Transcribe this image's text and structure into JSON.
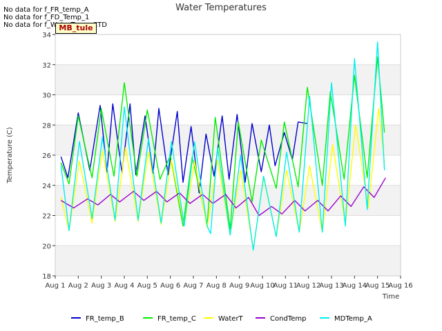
{
  "notices": [
    "No data for f_FR_temp_A",
    "No data for f_FD_Temp_1",
    "No data for f_WaterTemp_CTD"
  ],
  "site_tag": "MB_tule",
  "chart_data": {
    "type": "line",
    "title": "Water Temperatures",
    "xlabel": "Time",
    "ylabel": "Temperature (C)",
    "ylim": [
      18,
      34
    ],
    "xlim": [
      1,
      16
    ],
    "grid": true,
    "legend_position": "bottom",
    "x_ticks": [
      "Aug 1",
      "Aug 2",
      "Aug 3",
      "Aug 4",
      "Aug 5",
      "Aug 6",
      "Aug 7",
      "Aug 8",
      "Aug 9",
      "Aug 10",
      "Aug 11",
      "Aug 12",
      "Aug 13",
      "Aug 14",
      "Aug 15",
      "Aug 16"
    ],
    "y_ticks": [
      18,
      20,
      22,
      24,
      26,
      28,
      30,
      32,
      34
    ],
    "series": [
      {
        "name": "FR_temp_B",
        "color": "#0000cc",
        "x": [
          1.25,
          1.55,
          2.0,
          2.5,
          2.95,
          3.25,
          3.5,
          3.9,
          4.25,
          4.5,
          4.9,
          5.25,
          5.5,
          5.9,
          6.3,
          6.55,
          6.9,
          7.25,
          7.55,
          7.9,
          8.25,
          8.55,
          8.9,
          9.25,
          9.55,
          9.95,
          10.3,
          10.55,
          10.95,
          11.3,
          11.55,
          11.95,
          12.3,
          12.55,
          12.9,
          13.3,
          13.55,
          13.9,
          14.3,
          14.55,
          14.9,
          15.25
        ],
        "y": [
          25.9,
          24.5,
          28.8,
          25.0,
          29.3,
          24.9,
          29.4,
          24.8,
          29.4,
          24.7,
          28.6,
          24.8,
          29.1,
          24.7,
          28.9,
          24.2,
          27.9,
          23.5,
          27.4,
          24.6,
          28.6,
          24.4,
          28.7,
          24.2,
          28.1,
          24.9,
          28.0,
          25.3,
          27.5,
          25.7,
          28.2,
          28.1,
          null,
          null,
          null,
          null,
          null,
          null,
          null,
          null,
          null,
          null
        ]
      },
      {
        "name": "FR_temp_C",
        "color": "#00ee00",
        "x": [
          1.25,
          1.6,
          2.0,
          2.6,
          3.0,
          3.55,
          4.0,
          4.55,
          5.0,
          5.55,
          6.0,
          6.55,
          6.95,
          7.6,
          7.95,
          8.6,
          8.95,
          9.55,
          9.95,
          10.6,
          10.95,
          11.55,
          11.95,
          12.6,
          12.95,
          13.55,
          14.0,
          14.55,
          15.0,
          15.3
        ],
        "y": [
          25.5,
          24.1,
          28.6,
          24.5,
          29.1,
          24.6,
          30.8,
          24.6,
          29.0,
          24.4,
          26.0,
          21.3,
          25.9,
          21.4,
          28.5,
          21.1,
          28.2,
          22.9,
          27.0,
          23.8,
          28.2,
          23.9,
          30.5,
          24.0,
          30.2,
          24.4,
          31.3,
          24.5,
          32.5,
          27.5
        ]
      },
      {
        "name": "WaterT",
        "color": "#ffff00",
        "x": [
          1.25,
          1.6,
          2.05,
          2.6,
          3.05,
          3.6,
          4.05,
          4.6,
          5.05,
          5.6,
          6.05,
          6.6,
          7.05,
          7.6,
          8.05,
          8.6,
          9.05,
          9.6,
          10.05,
          10.6,
          11.05,
          11.6,
          12.05,
          12.6,
          13.05,
          13.6,
          14.05,
          14.6,
          15.05,
          15.3
        ],
        "y": [
          23.2,
          21.0,
          25.6,
          21.5,
          26.3,
          21.6,
          26.5,
          21.6,
          26.2,
          21.4,
          25.7,
          21.3,
          25.6,
          21.2,
          25.7,
          20.7,
          25.0,
          19.8,
          24.5,
          20.6,
          25.0,
          20.9,
          25.3,
          20.9,
          26.7,
          21.4,
          28.0,
          22.5,
          29.1,
          25.5
        ]
      },
      {
        "name": "CondTemp",
        "color": "#9900cc",
        "x": [
          1.25,
          1.8,
          2.4,
          2.85,
          3.4,
          3.8,
          4.4,
          4.85,
          5.4,
          5.85,
          6.4,
          6.85,
          7.4,
          7.85,
          8.4,
          8.85,
          9.4,
          9.85,
          10.4,
          10.85,
          11.4,
          11.85,
          12.4,
          12.85,
          13.4,
          13.85,
          14.4,
          14.85,
          15.35
        ],
        "y": [
          23.0,
          22.5,
          23.1,
          22.7,
          23.4,
          22.9,
          23.6,
          23.0,
          23.6,
          22.9,
          23.5,
          22.8,
          23.4,
          22.8,
          23.4,
          22.5,
          23.2,
          22.0,
          22.6,
          22.1,
          23.0,
          22.3,
          23.0,
          22.3,
          23.3,
          22.6,
          23.9,
          23.2,
          24.5
        ]
      },
      {
        "name": "MDTemp_A",
        "color": "#00eeee",
        "x": [
          1.25,
          1.6,
          2.05,
          2.6,
          3.05,
          3.6,
          4.0,
          4.6,
          5.05,
          5.6,
          6.05,
          6.6,
          7.05,
          7.6,
          7.75,
          8.05,
          8.6,
          9.05,
          9.6,
          10.05,
          10.6,
          11.05,
          11.6,
          12.05,
          12.6,
          13.0,
          13.6,
          14.0,
          14.55,
          15.0,
          15.3
        ],
        "y": [
          25.3,
          21.0,
          26.9,
          21.8,
          27.2,
          21.7,
          29.2,
          21.7,
          27.1,
          21.5,
          26.9,
          21.3,
          26.9,
          21.3,
          20.8,
          26.5,
          20.7,
          26.0,
          19.7,
          24.6,
          20.6,
          26.2,
          20.9,
          29.9,
          20.9,
          30.8,
          21.3,
          32.4,
          22.4,
          33.5,
          25.0
        ]
      }
    ]
  }
}
